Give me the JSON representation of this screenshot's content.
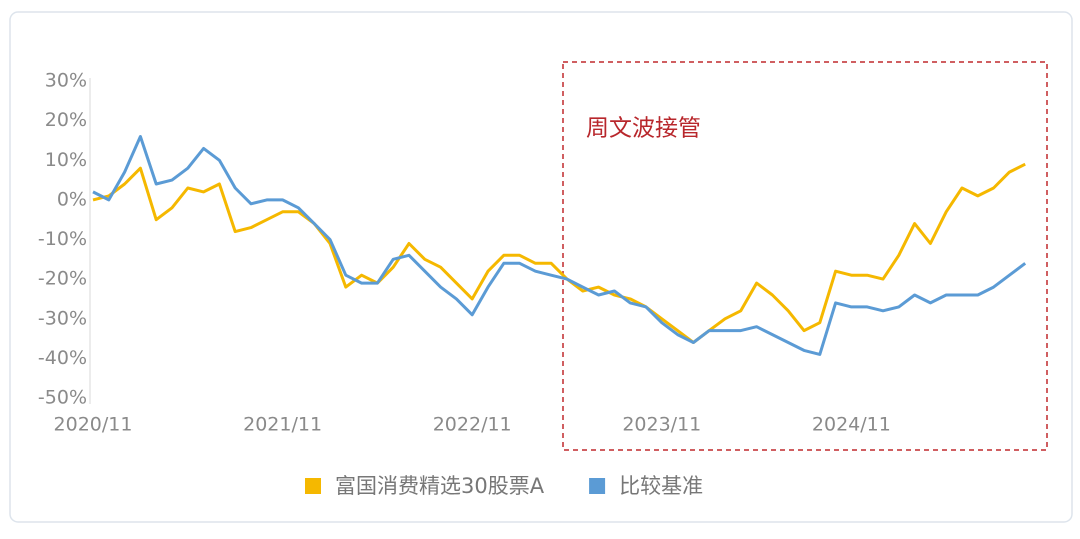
{
  "chart_data": {
    "type": "line",
    "categories": [
      "2020/11",
      null,
      null,
      null,
      null,
      null,
      null,
      null,
      null,
      null,
      null,
      null,
      "2021/11",
      null,
      null,
      null,
      null,
      null,
      null,
      null,
      null,
      null,
      null,
      null,
      "2022/11",
      null,
      null,
      null,
      null,
      null,
      null,
      null,
      null,
      null,
      null,
      null,
      "2023/11",
      null,
      null,
      null,
      null,
      null,
      null,
      null,
      null,
      null,
      null,
      null,
      "2024/11",
      null,
      null,
      null,
      null,
      null,
      null,
      null,
      null,
      null,
      null,
      null
    ],
    "series": [
      {
        "name": "富国消费精选30股票A",
        "color": "#f5b800",
        "values": [
          0,
          1,
          4,
          8,
          -5,
          -2,
          3,
          2,
          4,
          -8,
          -7,
          -5,
          -3,
          -3,
          -6,
          -11,
          -22,
          -19,
          -21,
          -17,
          -11,
          -15,
          -17,
          -21,
          -25,
          -18,
          -14,
          -14,
          -16,
          -16,
          -20,
          -23,
          -22,
          -24,
          -25,
          -27,
          -30,
          -33,
          -36,
          -33,
          -30,
          -28,
          -21,
          -24,
          -28,
          -33,
          -31,
          -18,
          -19,
          -19,
          -20,
          -14,
          -6,
          -11,
          -3,
          3,
          1,
          3,
          7,
          9
        ]
      },
      {
        "name": "比较基准",
        "color": "#5b9bd5",
        "values": [
          2,
          0,
          7,
          16,
          4,
          5,
          8,
          13,
          10,
          3,
          -1,
          0,
          0,
          -2,
          -6,
          -10,
          -19,
          -21,
          -21,
          -15,
          -14,
          -18,
          -22,
          -25,
          -29,
          -22,
          -16,
          -16,
          -18,
          -19,
          -20,
          -22,
          -24,
          -23,
          -26,
          -27,
          -31,
          -34,
          -36,
          -33,
          -33,
          -33,
          -32,
          -34,
          -36,
          -38,
          -39,
          -26,
          -27,
          -27,
          -28,
          -27,
          -24,
          -26,
          -24,
          -24,
          -24,
          -22,
          -19,
          -16
        ]
      }
    ],
    "ylim": [
      -50,
      30
    ],
    "yticks": [
      {
        "value": -50,
        "label": "-50%"
      },
      {
        "value": -40,
        "label": "-40%"
      },
      {
        "value": -30,
        "label": "-30%"
      },
      {
        "value": -20,
        "label": "-20%"
      },
      {
        "value": -10,
        "label": "-10%"
      },
      {
        "value": 0,
        "label": "0%"
      },
      {
        "value": 10,
        "label": "10%"
      },
      {
        "value": 20,
        "label": "20%"
      },
      {
        "value": 30,
        "label": "30%"
      }
    ],
    "grid": false,
    "annotation": "周文波接管"
  }
}
